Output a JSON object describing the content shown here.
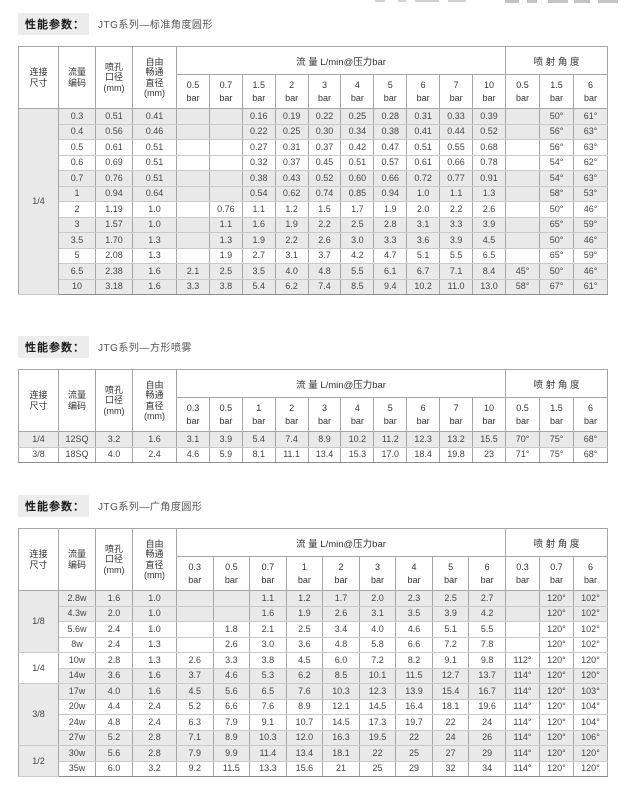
{
  "page": {
    "background": "#ffffff"
  },
  "colors": {
    "row_shaded": "#e9e9e9",
    "border": "#a6a6a6",
    "border_strong": "#8d8d8d",
    "label_bg": "#ececec",
    "text": "#454545"
  },
  "sections": [
    {
      "label": "性能参数：",
      "title": "JTG系列—标准角度圆形",
      "table": {
        "corner_headers": [
          "连接\n尺寸",
          "流量\n编码",
          "喷孔\n口径\n(mm)",
          "自由\n畅通\n直径\n(mm)"
        ],
        "flow_group_label": "流 量  L/min@压力bar",
        "angle_group_label": "喷 射 角 度",
        "flow_cols": [
          "0.5\nbar",
          "0.7\nbar",
          "1.5\nbar",
          "2\nbar",
          "3\nbar",
          "4\nbar",
          "5\nbar",
          "6\nbar",
          "7\nbar",
          "10\nbar"
        ],
        "angle_cols": [
          "0.5\nbar",
          "1.5\nbar",
          "6\nbar"
        ],
        "groups": [
          {
            "size": "1/4",
            "rows": [
              {
                "code": "0.3",
                "orifice": "0.51",
                "free": "0.41",
                "flow": [
                  "",
                  "",
                  "0.16",
                  "0.19",
                  "0.22",
                  "0.25",
                  "0.28",
                  "0.31",
                  "0.33",
                  "0.39"
                ],
                "angles": [
                  "",
                  "50°",
                  "61°"
                ],
                "shaded": true
              },
              {
                "code": "0.4",
                "orifice": "0.56",
                "free": "0.46",
                "flow": [
                  "",
                  "",
                  "0.22",
                  "0.25",
                  "0.30",
                  "0.34",
                  "0.38",
                  "0.41",
                  "0.44",
                  "0.52"
                ],
                "angles": [
                  "",
                  "56°",
                  "63°"
                ],
                "shaded": true
              },
              {
                "code": "0.5",
                "orifice": "0.61",
                "free": "0.51",
                "flow": [
                  "",
                  "",
                  "0.27",
                  "0.31",
                  "0.37",
                  "0.42",
                  "0.47",
                  "0.51",
                  "0.55",
                  "0.68"
                ],
                "angles": [
                  "",
                  "56°",
                  "63°"
                ],
                "shaded": false
              },
              {
                "code": "0.6",
                "orifice": "0.69",
                "free": "0.51",
                "flow": [
                  "",
                  "",
                  "0.32",
                  "0.37",
                  "0.45",
                  "0.51",
                  "0.57",
                  "0.61",
                  "0.66",
                  "0.78"
                ],
                "angles": [
                  "",
                  "54°",
                  "62°"
                ],
                "shaded": false
              },
              {
                "code": "0.7",
                "orifice": "0.76",
                "free": "0.51",
                "flow": [
                  "",
                  "",
                  "0.38",
                  "0.43",
                  "0.52",
                  "0.60",
                  "0.66",
                  "0.72",
                  "0.77",
                  "0.91"
                ],
                "angles": [
                  "",
                  "54°",
                  "63°"
                ],
                "shaded": true
              },
              {
                "code": "1",
                "orifice": "0.94",
                "free": "0.64",
                "flow": [
                  "",
                  "",
                  "0.54",
                  "0.62",
                  "0.74",
                  "0.85",
                  "0.94",
                  "1.0",
                  "1.1",
                  "1.3"
                ],
                "angles": [
                  "",
                  "58°",
                  "53°"
                ],
                "shaded": true
              },
              {
                "code": "2",
                "orifice": "1.19",
                "free": "1.0",
                "flow": [
                  "",
                  "0.76",
                  "1.1",
                  "1.2",
                  "1.5",
                  "1.7",
                  "1.9",
                  "2.0",
                  "2.2",
                  "2.6"
                ],
                "angles": [
                  "",
                  "50°",
                  "46°"
                ],
                "shaded": false
              },
              {
                "code": "3",
                "orifice": "1.57",
                "free": "1.0",
                "flow": [
                  "",
                  "1.1",
                  "1.6",
                  "1.9",
                  "2.2",
                  "2.5",
                  "2.8",
                  "3.1",
                  "3.3",
                  "3.9"
                ],
                "angles": [
                  "",
                  "65°",
                  "59°"
                ],
                "shaded": true
              },
              {
                "code": "3.5",
                "orifice": "1.70",
                "free": "1.3",
                "flow": [
                  "",
                  "1.3",
                  "1.9",
                  "2.2",
                  "2.6",
                  "3.0",
                  "3.3",
                  "3.6",
                  "3.9",
                  "4.5"
                ],
                "angles": [
                  "",
                  "50°",
                  "46°"
                ],
                "shaded": true
              },
              {
                "code": "5",
                "orifice": "2.08",
                "free": "1.3",
                "flow": [
                  "",
                  "1.9",
                  "2.7",
                  "3.1",
                  "3.7",
                  "4.2",
                  "4.7",
                  "5.1",
                  "5.5",
                  "6.5"
                ],
                "angles": [
                  "",
                  "65°",
                  "59°"
                ],
                "shaded": false
              },
              {
                "code": "6.5",
                "orifice": "2.38",
                "free": "1.6",
                "flow": [
                  "2.1",
                  "2.5",
                  "3.5",
                  "4.0",
                  "4.8",
                  "5.5",
                  "6.1",
                  "6.7",
                  "7.1",
                  "8.4"
                ],
                "angles": [
                  "45°",
                  "50°",
                  "46°"
                ],
                "shaded": true
              },
              {
                "code": "10",
                "orifice": "3.18",
                "free": "1.6",
                "flow": [
                  "3.3",
                  "3.8",
                  "5.4",
                  "6.2",
                  "7.4",
                  "8.5",
                  "9.4",
                  "10.2",
                  "11.0",
                  "13.0"
                ],
                "angles": [
                  "58°",
                  "67°",
                  "61°"
                ],
                "shaded": true
              }
            ]
          }
        ]
      }
    },
    {
      "label": "性能参数：",
      "title": "JTG系列—方形喷雾",
      "table": {
        "corner_headers": [
          "连接\n尺寸",
          "流量\n编码",
          "喷孔\n口径\n(mm)",
          "自由\n畅通\n直径\n(mm)"
        ],
        "flow_group_label": "流 量  L/min@压力bar",
        "angle_group_label": "喷 射 角 度",
        "flow_cols": [
          "0.3\nbar",
          "0.5\nbar",
          "1\nbar",
          "2\nbar",
          "3\nbar",
          "4\nbar",
          "5\nbar",
          "6\nbar",
          "7\nbar",
          "10\nbar"
        ],
        "angle_cols": [
          "0.5\nbar",
          "1.5\nbar",
          "6\nbar"
        ],
        "groups": [
          {
            "size": "1/4",
            "rows": [
              {
                "code": "12SQ",
                "orifice": "3.2",
                "free": "1.6",
                "flow": [
                  "3.1",
                  "3.9",
                  "5.4",
                  "7.4",
                  "8.9",
                  "10.2",
                  "11.2",
                  "12.3",
                  "13.2",
                  "15.5"
                ],
                "angles": [
                  "70°",
                  "75°",
                  "68°"
                ],
                "shaded": true
              }
            ]
          },
          {
            "size": "3/8",
            "rows": [
              {
                "code": "18SQ",
                "orifice": "4.0",
                "free": "2.4",
                "flow": [
                  "4.6",
                  "5.9",
                  "8.1",
                  "11.1",
                  "13.4",
                  "15.3",
                  "17.0",
                  "18.4",
                  "19.8",
                  "23"
                ],
                "angles": [
                  "71°",
                  "75°",
                  "68°"
                ],
                "shaded": false
              }
            ]
          }
        ]
      }
    },
    {
      "label": "性能参数：",
      "title": "JTG系列—广角度圆形",
      "table": {
        "corner_headers": [
          "连接\n尺寸",
          "流量\n编码",
          "喷孔\n口径\n(mm)",
          "自由\n畅通\n直径\n(mm)"
        ],
        "flow_group_label": "流 量  L/min@压力bar",
        "angle_group_label": "喷 射 角 度",
        "flow_cols": [
          "0.3\nbar",
          "0.5\nbar",
          "0.7\nbar",
          "1\nbar",
          "2\nbar",
          "3\nbar",
          "4\nbar",
          "5\nbar",
          "6\nbar"
        ],
        "angle_cols": [
          "0.3\nbar",
          "0.7\nbar",
          "6\nbar"
        ],
        "groups": [
          {
            "size": "1/8",
            "rows": [
              {
                "code": "2.8w",
                "orifice": "1.6",
                "free": "1.0",
                "flow": [
                  "",
                  "",
                  "1.1",
                  "1.2",
                  "1.7",
                  "2.0",
                  "2.3",
                  "2.5",
                  "2.7"
                ],
                "angles": [
                  "",
                  "120°",
                  "102°"
                ],
                "shaded": true
              },
              {
                "code": "4.3w",
                "orifice": "2.0",
                "free": "1.0",
                "flow": [
                  "",
                  "",
                  "1.6",
                  "1.9",
                  "2.6",
                  "3.1",
                  "3.5",
                  "3.9",
                  "4.2"
                ],
                "angles": [
                  "",
                  "120°",
                  "102°"
                ],
                "shaded": true
              },
              {
                "code": "5.6w",
                "orifice": "2.4",
                "free": "1.0",
                "flow": [
                  "",
                  "1.8",
                  "2.1",
                  "2.5",
                  "3.4",
                  "4.0",
                  "4.6",
                  "5.1",
                  "5.5"
                ],
                "angles": [
                  "",
                  "120°",
                  "102°"
                ],
                "shaded": false
              },
              {
                "code": "8w",
                "orifice": "2.4",
                "free": "1.3",
                "flow": [
                  "",
                  "2.6",
                  "3.0",
                  "3.6",
                  "4.8",
                  "5.8",
                  "6.6",
                  "7.2",
                  "7.8"
                ],
                "angles": [
                  "",
                  "120°",
                  "102°"
                ],
                "shaded": false
              }
            ]
          },
          {
            "size": "1/4",
            "rows": [
              {
                "code": "10w",
                "orifice": "2.8",
                "free": "1.3",
                "flow": [
                  "2.6",
                  "3.3",
                  "3.8",
                  "4.5",
                  "6.0",
                  "7.2",
                  "8.2",
                  "9.1",
                  "9.8"
                ],
                "angles": [
                  "112°",
                  "120°",
                  "120°"
                ],
                "shaded": false
              },
              {
                "code": "14w",
                "orifice": "3.6",
                "free": "1.6",
                "flow": [
                  "3.7",
                  "4.6",
                  "5.3",
                  "6.2",
                  "8.5",
                  "10.1",
                  "11.5",
                  "12.7",
                  "13.7"
                ],
                "angles": [
                  "114°",
                  "120°",
                  "120°"
                ],
                "shaded": true
              }
            ]
          },
          {
            "size": "3/8",
            "rows": [
              {
                "code": "17w",
                "orifice": "4.0",
                "free": "1.6",
                "flow": [
                  "4.5",
                  "5.6",
                  "6.5",
                  "7.6",
                  "10.3",
                  "12.3",
                  "13.9",
                  "15.4",
                  "16.7"
                ],
                "angles": [
                  "114°",
                  "120°",
                  "103°"
                ],
                "shaded": true
              },
              {
                "code": "20w",
                "orifice": "4.4",
                "free": "2.4",
                "flow": [
                  "5.2",
                  "6.6",
                  "7.6",
                  "8.9",
                  "12.1",
                  "14.5",
                  "16.4",
                  "18.1",
                  "19.6"
                ],
                "angles": [
                  "114°",
                  "120°",
                  "104°"
                ],
                "shaded": false
              },
              {
                "code": "24w",
                "orifice": "4.8",
                "free": "2.4",
                "flow": [
                  "6.3",
                  "7.9",
                  "9.1",
                  "10.7",
                  "14.5",
                  "17.3",
                  "19.7",
                  "22",
                  "24"
                ],
                "angles": [
                  "114°",
                  "120°",
                  "104°"
                ],
                "shaded": false
              },
              {
                "code": "27w",
                "orifice": "5.2",
                "free": "2.8",
                "flow": [
                  "7.1",
                  "8.9",
                  "10.3",
                  "12.0",
                  "16.3",
                  "19.5",
                  "22",
                  "24",
                  "26"
                ],
                "angles": [
                  "114°",
                  "120°",
                  "106°"
                ],
                "shaded": true
              }
            ]
          },
          {
            "size": "1/2",
            "rows": [
              {
                "code": "30w",
                "orifice": "5.6",
                "free": "2.8",
                "flow": [
                  "7.9",
                  "9.9",
                  "11.4",
                  "13.4",
                  "18.1",
                  "22",
                  "25",
                  "27",
                  "29"
                ],
                "angles": [
                  "114°",
                  "120°",
                  "120°"
                ],
                "shaded": true
              },
              {
                "code": "35w",
                "orifice": "6.0",
                "free": "3.2",
                "flow": [
                  "9.2",
                  "11.5",
                  "13.3",
                  "15.6",
                  "21",
                  "25",
                  "29",
                  "32",
                  "34"
                ],
                "angles": [
                  "114°",
                  "120°",
                  "120°"
                ],
                "shaded": false
              }
            ]
          }
        ]
      }
    }
  ]
}
